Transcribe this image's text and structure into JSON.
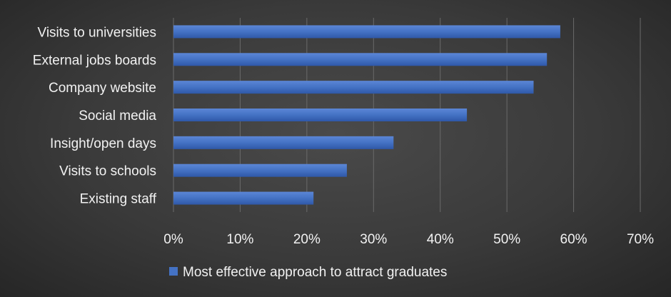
{
  "chart_data": {
    "type": "bar",
    "orientation": "horizontal",
    "categories": [
      "Visits to universities",
      "External jobs boards",
      "Company website",
      "Social media",
      "Insight/open days",
      "Visits to schools",
      "Existing staff"
    ],
    "series": [
      {
        "name": "Most effective approach to attract graduates",
        "values": [
          58,
          56,
          54,
          44,
          33,
          26,
          21
        ],
        "color": "#4472c4"
      }
    ],
    "x_ticks": [
      "0%",
      "10%",
      "20%",
      "30%",
      "40%",
      "50%",
      "60%",
      "70%"
    ],
    "xlim": [
      0,
      70
    ],
    "grid": true,
    "legend_position": "bottom",
    "title": "",
    "xlabel": "",
    "ylabel": ""
  }
}
